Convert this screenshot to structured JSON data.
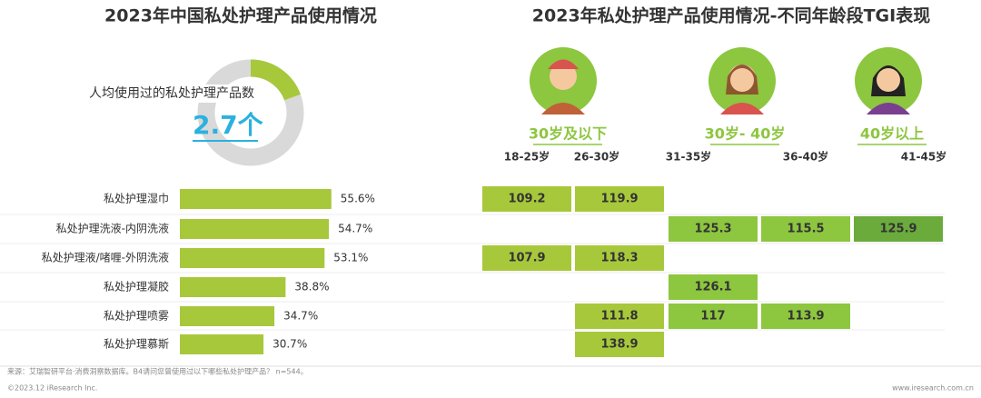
{
  "left_title": "2023年中国私处护理产品使用情况",
  "right_title": "2023年私处护理产品使用情况-不同年龄段TGI表现",
  "donut": {
    "label": "人均使用过的私处护理产品数",
    "value_text": "2.7个"
  },
  "age_groups": [
    {
      "label": "30岁及以下",
      "subgroups": [
        "18-25岁",
        "26-30岁"
      ]
    },
    {
      "label": "30岁- 40岁",
      "subgroups": [
        "31-35岁",
        "36-40岁"
      ]
    },
    {
      "label": "40岁以上",
      "subgroups": [
        "41-45岁"
      ]
    }
  ],
  "chart_data": {
    "type": "bar",
    "orientation": "horizontal",
    "categories": [
      "私处护理湿巾",
      "私处护理洗液-内阴洗液",
      "私处护理液/啫喱-外阴洗液",
      "私处护理凝胶",
      "私处护理喷雾",
      "私处护理慕斯"
    ],
    "values": [
      55.6,
      54.7,
      53.1,
      38.8,
      34.7,
      30.7
    ],
    "value_labels": [
      "55.6%",
      "54.7%",
      "53.1%",
      "38.8%",
      "34.7%",
      "30.7%"
    ],
    "color": "#a8c83c"
  },
  "tgi_table": {
    "cell_colors": [
      "#a8c83c",
      "#a8c83c",
      "#8dc63f",
      "#8dc63f",
      "#6aab3c"
    ],
    "rows": [
      [
        109.2,
        119.9,
        null,
        null,
        null
      ],
      [
        null,
        null,
        125.3,
        115.5,
        125.9
      ],
      [
        107.9,
        118.3,
        null,
        null,
        null
      ],
      [
        null,
        null,
        126.1,
        null,
        null
      ],
      [
        null,
        111.8,
        117.0,
        113.9,
        null
      ],
      [
        null,
        138.9,
        null,
        null,
        null
      ]
    ],
    "row_labels": [
      [
        "109.2",
        "119.9",
        null,
        null,
        null
      ],
      [
        null,
        null,
        "125.3",
        "115.5",
        "125.9"
      ],
      [
        null,
        null,
        null,
        null,
        null
      ],
      [
        null,
        null,
        "126.1",
        null,
        null
      ],
      [
        null,
        "111.8",
        "117.0",
        "113.9",
        null
      ],
      [
        null,
        "138.9",
        null,
        null,
        null
      ]
    ]
  },
  "footer": {
    "source": "来源：艾瑞智研平台·消费洞察数据库。B4请问您曾使用过以下哪些私处护理产品？ n=544。",
    "copyright": "©2023.12 iResearch Inc.",
    "website": "www.iresearch.com.cn"
  }
}
